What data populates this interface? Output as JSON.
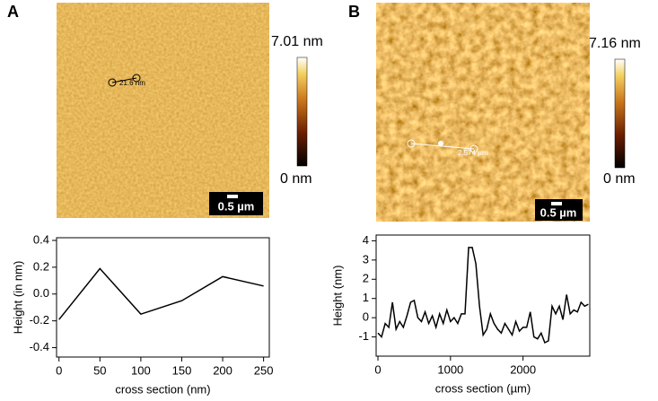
{
  "chart_data": [
    {
      "type": "line",
      "panel_label": "A",
      "image_labels": {
        "scale_max": "7.01 nm",
        "scale_min": "0 nm",
        "scale_bar": "0.5 µm",
        "measurement": "21.6 nm"
      },
      "x_label": "cross section (nm)",
      "y_label": "Height (in nm)",
      "x": [
        0,
        50,
        100,
        150,
        200,
        250
      ],
      "values": [
        -0.19,
        0.19,
        -0.15,
        -0.05,
        0.13,
        0.06
      ],
      "color": "#000000",
      "xlim": [
        -3,
        257
      ],
      "ylim": [
        -0.47,
        0.42
      ],
      "xticks": [
        0,
        50,
        100,
        150,
        200,
        250
      ],
      "yticks": [
        -0.4,
        -0.2,
        {
          "value": 0,
          "label": "0.0"
        },
        0.2,
        0.4
      ]
    },
    {
      "type": "line",
      "panel_label": "B",
      "image_labels": {
        "scale_max": "7.16 nm",
        "scale_min": "0 nm",
        "scale_bar": "0.5 µm",
        "measurement": "2.574 µm"
      },
      "x_label": "cross section (µm)",
      "y_label": "Height (nm)",
      "x": [
        0,
        50,
        100,
        150,
        200,
        250,
        300,
        350,
        400,
        450,
        500,
        550,
        600,
        650,
        700,
        750,
        800,
        850,
        900,
        950,
        1000,
        1050,
        1100,
        1150,
        1200,
        1250,
        1300,
        1350,
        1400,
        1450,
        1500,
        1550,
        1600,
        1650,
        1700,
        1750,
        1800,
        1850,
        1900,
        1950,
        2000,
        2050,
        2100,
        2150,
        2200,
        2250,
        2300,
        2350,
        2400,
        2450,
        2500,
        2550,
        2600,
        2650,
        2700,
        2750,
        2800,
        2850,
        2900
      ],
      "values": [
        -0.8,
        -1.0,
        -0.3,
        -0.5,
        0.8,
        -0.6,
        -0.2,
        -0.5,
        0.1,
        0.8,
        0.9,
        0.0,
        -0.2,
        0.3,
        -0.3,
        0.1,
        -0.5,
        0.2,
        -0.3,
        0.4,
        -0.2,
        0.0,
        -0.3,
        0.2,
        0.2,
        3.65,
        3.65,
        2.8,
        0.6,
        -0.9,
        -0.6,
        0.2,
        -0.3,
        -0.6,
        -0.8,
        -0.3,
        -0.6,
        -0.9,
        -0.2,
        -0.7,
        -0.5,
        -0.5,
        0.3,
        -1.0,
        -1.1,
        -0.8,
        -1.3,
        -1.2,
        0.6,
        0.2,
        0.6,
        -0.1,
        1.2,
        0.2,
        0.4,
        0.3,
        0.8,
        0.6,
        0.7
      ],
      "color": "#000000",
      "xlim": [
        -25,
        2920
      ],
      "ylim": [
        -2.0,
        4.3
      ],
      "xticks": [
        0,
        1000,
        2000
      ],
      "yticks": [
        -1,
        0,
        1,
        2,
        3,
        4
      ]
    }
  ]
}
